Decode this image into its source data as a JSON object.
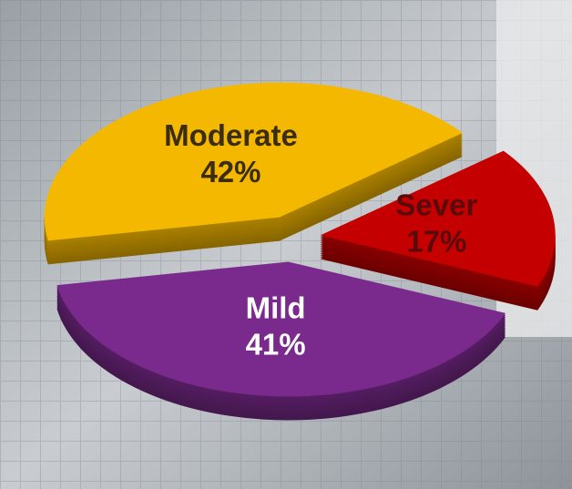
{
  "chart_data": {
    "type": "pie",
    "categories": [
      "Moderate",
      "Sever",
      "Mild"
    ],
    "values": [
      42,
      17,
      41
    ],
    "value_labels": [
      "42%",
      "17%",
      "41%"
    ],
    "colors": [
      "#f5b800",
      "#c40000",
      "#7a2a8c"
    ]
  }
}
